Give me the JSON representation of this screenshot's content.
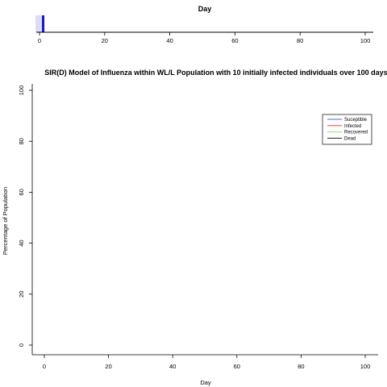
{
  "chart_data": [
    {
      "type": "bar",
      "role": "day-slider",
      "title": "Day",
      "xlim": [
        0,
        100
      ],
      "x_ticks": [
        "0",
        "20",
        "40",
        "60",
        "80",
        "100"
      ],
      "current_day": 1,
      "range_shown": [
        0,
        1
      ],
      "colors": {
        "marker": "#1a16cf",
        "band": "#dcdcf2"
      }
    },
    {
      "type": "line",
      "title": "SIR(D) Model of Influenza within WL/L Population with 10 initially infected individuals over 100 days",
      "xlabel": "Day",
      "ylabel": "Percentage of Population",
      "xlim": [
        0,
        100
      ],
      "ylim": [
        0,
        100
      ],
      "x_ticks": [
        "0",
        "20",
        "40",
        "60",
        "80",
        "100"
      ],
      "y_ticks": [
        "0",
        "20",
        "40",
        "60",
        "80",
        "100"
      ],
      "grid": false,
      "legend_position": "top-right",
      "series": [
        {
          "name": "Suceptible",
          "color": "#4169e1",
          "x": [],
          "y": []
        },
        {
          "name": "Infected",
          "color": "#ff3b3b",
          "x": [],
          "y": []
        },
        {
          "name": "Recovered",
          "color": "#7ee07e",
          "x": [],
          "y": []
        },
        {
          "name": "Dead",
          "color": "#222222",
          "x": [],
          "y": []
        }
      ]
    }
  ]
}
